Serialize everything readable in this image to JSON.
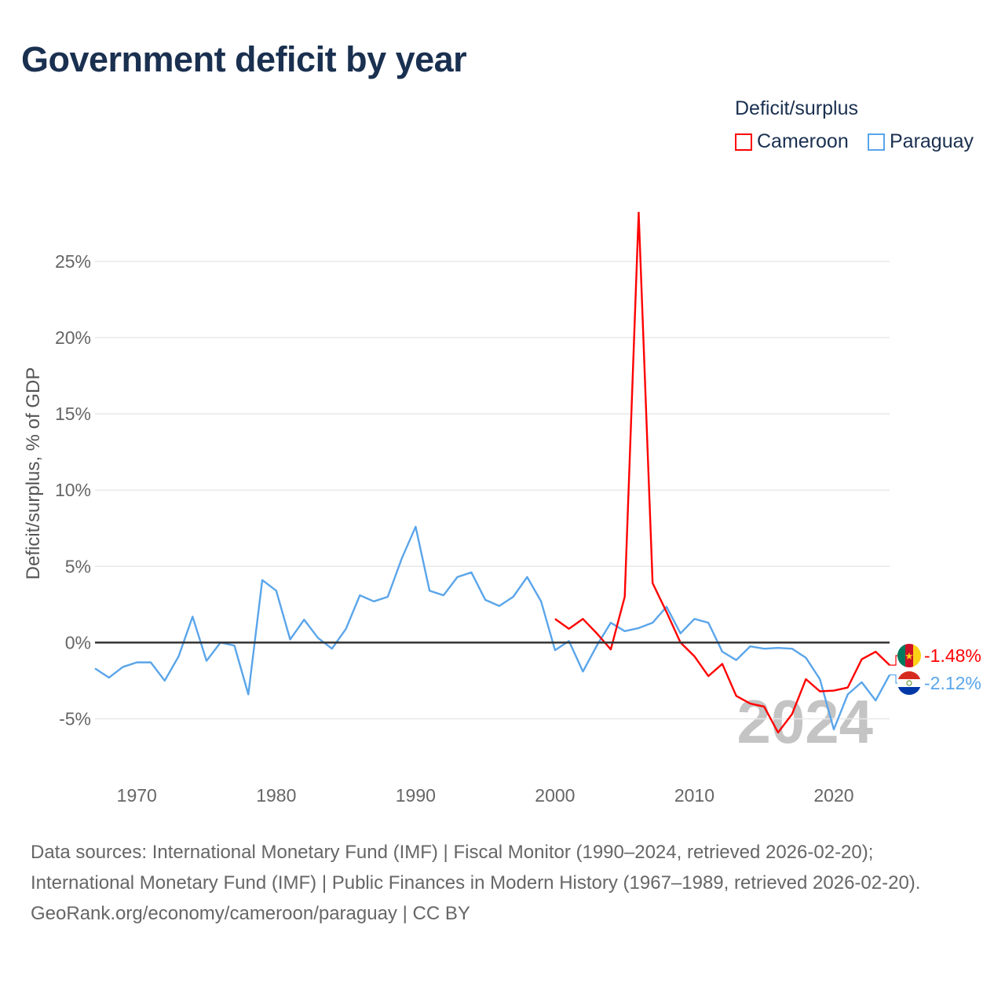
{
  "title": "Government deficit by year",
  "legend": {
    "title": "Deficit/surplus",
    "items": [
      {
        "label": "Cameroon",
        "color": "#ff0000"
      },
      {
        "label": "Paraguay",
        "color": "#5aa5ea"
      }
    ]
  },
  "watermark_year": "2024",
  "source": {
    "line1": "Data sources: International Monetary Fund (IMF) | Fiscal Monitor (1990–2024, retrieved 2026-02-20);",
    "line2": "International Monetary Fund (IMF) | Public Finances in Modern History (1967–1989, retrieved 2026-02-20).",
    "line3": "GeoRank.org/economy/cameroon/paraguay | CC BY"
  },
  "chart_data": {
    "type": "line",
    "title": "Government deficit by year",
    "xlabel": "",
    "ylabel": "Deficit/surplus, % of GDP",
    "xlim": [
      1967,
      2024
    ],
    "ylim": [
      -7.5,
      28.5
    ],
    "xticks": [
      1970,
      1980,
      1990,
      2000,
      2010,
      2020
    ],
    "yticks": [
      {
        "v": -5,
        "label": "-5%"
      },
      {
        "v": 0,
        "label": "0%"
      },
      {
        "v": 5,
        "label": "5%"
      },
      {
        "v": 10,
        "label": "10%"
      },
      {
        "v": 15,
        "label": "15%"
      },
      {
        "v": 20,
        "label": "20%"
      },
      {
        "v": 25,
        "label": "25%"
      }
    ],
    "series": [
      {
        "name": "Cameroon",
        "color": "#ff0000",
        "end_label": "-1.48%",
        "x": [
          2000,
          2001,
          2002,
          2003,
          2004,
          2005,
          2006,
          2007,
          2008,
          2009,
          2010,
          2011,
          2012,
          2013,
          2014,
          2015,
          2016,
          2017,
          2018,
          2019,
          2020,
          2021,
          2022,
          2023,
          2024
        ],
        "values": [
          1.55,
          0.9,
          1.55,
          0.6,
          -0.45,
          3.0,
          28.2,
          3.9,
          2.0,
          0.0,
          -0.9,
          -2.2,
          -1.4,
          -3.5,
          -4.0,
          -4.2,
          -5.9,
          -4.7,
          -2.4,
          -3.2,
          -3.15,
          -2.95,
          -1.1,
          -0.6,
          -1.48
        ]
      },
      {
        "name": "Paraguay",
        "color": "#5aa5ea",
        "end_label": "-2.12%",
        "x": [
          1967,
          1968,
          1969,
          1970,
          1971,
          1972,
          1973,
          1974,
          1975,
          1976,
          1977,
          1978,
          1979,
          1980,
          1981,
          1982,
          1983,
          1984,
          1985,
          1986,
          1987,
          1988,
          1989,
          1990,
          1991,
          1992,
          1993,
          1994,
          1995,
          1996,
          1997,
          1998,
          1999,
          2000,
          2001,
          2002,
          2003,
          2004,
          2005,
          2006,
          2007,
          2008,
          2009,
          2010,
          2011,
          2012,
          2013,
          2014,
          2015,
          2016,
          2017,
          2018,
          2019,
          2020,
          2021,
          2022,
          2023,
          2024
        ],
        "values": [
          -1.7,
          -2.3,
          -1.6,
          -1.3,
          -1.3,
          -2.5,
          -0.9,
          1.7,
          -1.2,
          0.0,
          -0.2,
          -3.4,
          4.1,
          3.4,
          0.2,
          1.5,
          0.3,
          -0.4,
          0.9,
          3.1,
          2.7,
          3.0,
          5.5,
          7.6,
          3.4,
          3.1,
          4.3,
          4.6,
          2.8,
          2.4,
          3.0,
          4.3,
          2.7,
          -0.5,
          0.1,
          -1.9,
          -0.2,
          1.3,
          0.75,
          0.95,
          1.3,
          2.35,
          0.6,
          1.55,
          1.3,
          -0.6,
          -1.15,
          -0.25,
          -0.4,
          -0.35,
          -0.4,
          -1.0,
          -2.4,
          -5.7,
          -3.4,
          -2.6,
          -3.8,
          -2.12
        ]
      }
    ],
    "grid": true,
    "legend_position": "top-right"
  }
}
